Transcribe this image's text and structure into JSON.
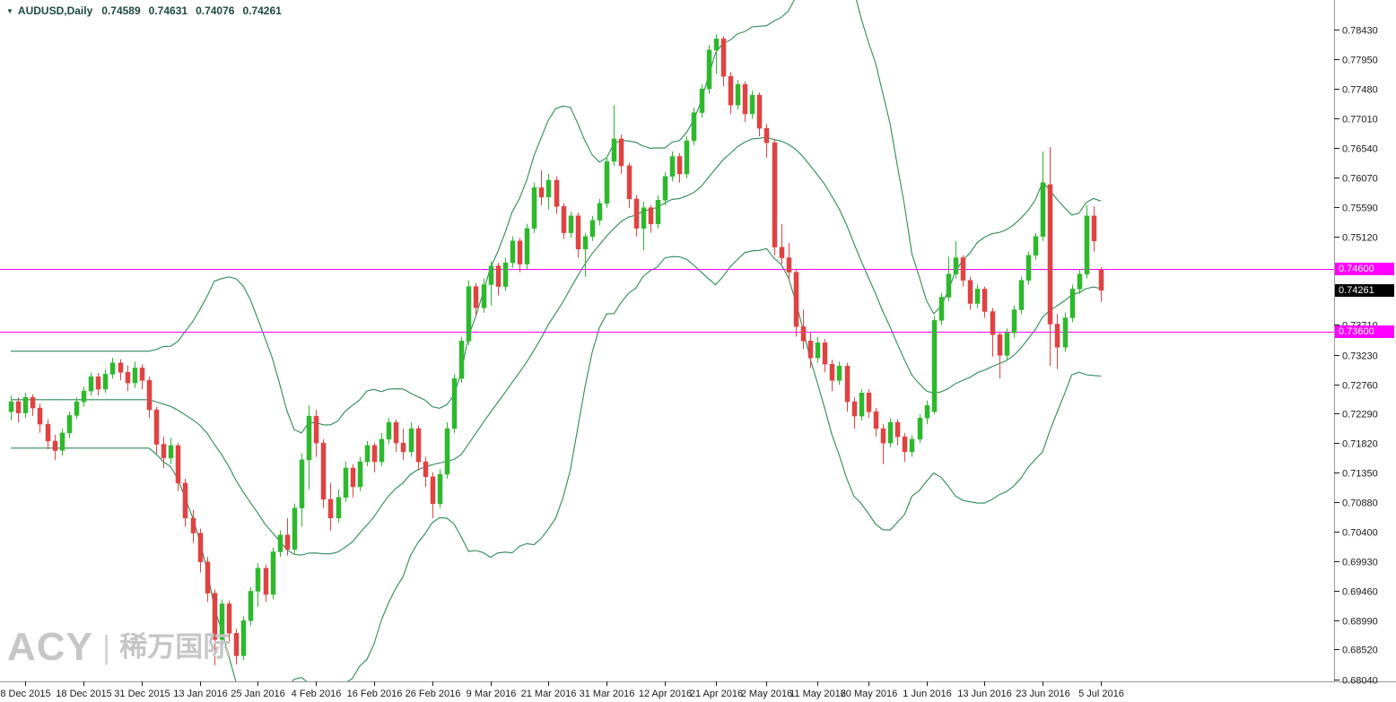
{
  "header": {
    "symbol_timeframe": "AUDUSD,Daily",
    "open": "0.74589",
    "high": "0.74631",
    "low": "0.74076",
    "close": "0.74261"
  },
  "icons": {
    "symbol_dropdown": "▼"
  },
  "watermark": {
    "brand": "ACY",
    "separator": "|",
    "chinese": "稀万国际"
  },
  "colors": {
    "background": "#ffffff",
    "up_candle": "#2eb82e",
    "down_candle": "#e04343",
    "bollinger": "#2e8b57",
    "hline": "#ff00ff",
    "axis_text": "#1a1a1a",
    "scale_border": "#999999",
    "quote_text": "#1c4a40",
    "watermark": "#c6c6c6",
    "price_marker_bg": "#000000",
    "price_marker_fg": "#ffffff"
  },
  "chart_data": {
    "type": "candlestick",
    "symbol": "AUDUSD",
    "timeframe": "Daily",
    "grid": "off",
    "legend": "none",
    "y_axis": {
      "max": 0.789,
      "min": 0.6801,
      "ticks": [
        {
          "p": 0.7843,
          "label": "0.78430"
        },
        {
          "p": 0.7795,
          "label": "0.77950"
        },
        {
          "p": 0.7748,
          "label": "0.77480"
        },
        {
          "p": 0.7701,
          "label": "0.77010"
        },
        {
          "p": 0.7654,
          "label": "0.76540"
        },
        {
          "p": 0.7607,
          "label": "0.76070"
        },
        {
          "p": 0.7559,
          "label": "0.75590"
        },
        {
          "p": 0.7512,
          "label": "0.75120"
        },
        {
          "p": 0.7371,
          "label": "0.73710"
        },
        {
          "p": 0.7323,
          "label": "0.73230"
        },
        {
          "p": 0.7276,
          "label": "0.72760"
        },
        {
          "p": 0.7229,
          "label": "0.72290"
        },
        {
          "p": 0.7182,
          "label": "0.71820"
        },
        {
          "p": 0.7135,
          "label": "0.71350"
        },
        {
          "p": 0.7088,
          "label": "0.70880"
        },
        {
          "p": 0.704,
          "label": "0.70400"
        },
        {
          "p": 0.6993,
          "label": "0.69930"
        },
        {
          "p": 0.6946,
          "label": "0.69460"
        },
        {
          "p": 0.6899,
          "label": "0.68990"
        },
        {
          "p": 0.6852,
          "label": "0.68520"
        },
        {
          "p": 0.6804,
          "label": "0.68040"
        }
      ]
    },
    "x_axis": {
      "ticks": [
        {
          "label": "8 Dec 2015",
          "i": 2
        },
        {
          "label": "18 Dec 2015",
          "i": 10
        },
        {
          "label": "31 Dec 2015",
          "i": 18
        },
        {
          "label": "13 Jan 2016",
          "i": 26
        },
        {
          "label": "25 Jan 2016",
          "i": 34
        },
        {
          "label": "4 Feb 2016",
          "i": 42
        },
        {
          "label": "16 Feb 2016",
          "i": 50
        },
        {
          "label": "26 Feb 2016",
          "i": 58
        },
        {
          "label": "9 Mar 2016",
          "i": 66
        },
        {
          "label": "21 Mar 2016",
          "i": 74
        },
        {
          "label": "31 Mar 2016",
          "i": 82
        },
        {
          "label": "12 Apr 2016",
          "i": 90
        },
        {
          "label": "21 Apr 2016",
          "i": 97
        },
        {
          "label": "2 May 2016",
          "i": 104
        },
        {
          "label": "11 May 2016",
          "i": 111
        },
        {
          "label": "20 May 2016",
          "i": 118
        },
        {
          "label": "1 Jun 2016",
          "i": 126
        },
        {
          "label": "13 Jun 2016",
          "i": 134
        },
        {
          "label": "23 Jun 2016",
          "i": 142
        },
        {
          "label": "5 Jul 2016",
          "i": 150
        }
      ]
    },
    "overlays": {
      "bollinger": {
        "period": 20,
        "deviation": 2
      }
    },
    "h_lines": [
      {
        "price": 0.746,
        "label": "0.74600"
      },
      {
        "price": 0.736,
        "label": "0.73600"
      }
    ],
    "price_marker": {
      "price": 0.74261,
      "label": "0.74261"
    },
    "candles": [
      [
        0.7232,
        0.7258,
        0.7218,
        0.7248
      ],
      [
        0.7248,
        0.7255,
        0.7215,
        0.723
      ],
      [
        0.723,
        0.7262,
        0.7222,
        0.7255
      ],
      [
        0.7255,
        0.726,
        0.7225,
        0.7238
      ],
      [
        0.7238,
        0.7245,
        0.7198,
        0.7212
      ],
      [
        0.7212,
        0.722,
        0.7172,
        0.7185
      ],
      [
        0.7185,
        0.7195,
        0.7155,
        0.717
      ],
      [
        0.717,
        0.7205,
        0.7162,
        0.7198
      ],
      [
        0.7198,
        0.7232,
        0.719,
        0.7226
      ],
      [
        0.7226,
        0.7255,
        0.722,
        0.7248
      ],
      [
        0.7248,
        0.7272,
        0.724,
        0.7265
      ],
      [
        0.7265,
        0.7295,
        0.7258,
        0.7288
      ],
      [
        0.7288,
        0.7294,
        0.7258,
        0.7268
      ],
      [
        0.7268,
        0.73,
        0.7262,
        0.7292
      ],
      [
        0.7292,
        0.7318,
        0.7285,
        0.731
      ],
      [
        0.731,
        0.7316,
        0.7282,
        0.7295
      ],
      [
        0.7295,
        0.7306,
        0.7265,
        0.7278
      ],
      [
        0.7278,
        0.7312,
        0.727,
        0.7302
      ],
      [
        0.7302,
        0.7308,
        0.7268,
        0.7282
      ],
      [
        0.7282,
        0.7288,
        0.7222,
        0.7235
      ],
      [
        0.7235,
        0.724,
        0.7165,
        0.718
      ],
      [
        0.718,
        0.7192,
        0.7142,
        0.7158
      ],
      [
        0.7158,
        0.719,
        0.7148,
        0.7178
      ],
      [
        0.7178,
        0.7182,
        0.7105,
        0.7118
      ],
      [
        0.7118,
        0.7125,
        0.7048,
        0.7062
      ],
      [
        0.7062,
        0.7075,
        0.7022,
        0.7038
      ],
      [
        0.7038,
        0.7045,
        0.6975,
        0.6992
      ],
      [
        0.6992,
        0.7,
        0.6928,
        0.6942
      ],
      [
        0.6942,
        0.6948,
        0.6827,
        0.6868
      ],
      [
        0.6868,
        0.6932,
        0.686,
        0.6925
      ],
      [
        0.6925,
        0.693,
        0.6862,
        0.6878
      ],
      [
        0.6878,
        0.6885,
        0.6828,
        0.6842
      ],
      [
        0.6842,
        0.6905,
        0.6835,
        0.6898
      ],
      [
        0.6898,
        0.6952,
        0.689,
        0.6945
      ],
      [
        0.6945,
        0.699,
        0.692,
        0.6982
      ],
      [
        0.6982,
        0.6988,
        0.6928,
        0.694
      ],
      [
        0.694,
        0.7015,
        0.6932,
        0.7008
      ],
      [
        0.7008,
        0.7042,
        0.7,
        0.7035
      ],
      [
        0.7035,
        0.7062,
        0.7002,
        0.7012
      ],
      [
        0.7012,
        0.7085,
        0.7005,
        0.7078
      ],
      [
        0.7078,
        0.7165,
        0.7048,
        0.7155
      ],
      [
        0.7155,
        0.7242,
        0.7108,
        0.7225
      ],
      [
        0.7225,
        0.7235,
        0.716,
        0.7182
      ],
      [
        0.7182,
        0.7188,
        0.7078,
        0.7092
      ],
      [
        0.7092,
        0.7118,
        0.7042,
        0.7062
      ],
      [
        0.7062,
        0.7108,
        0.7055,
        0.7095
      ],
      [
        0.7095,
        0.7152,
        0.7088,
        0.7142
      ],
      [
        0.7142,
        0.7148,
        0.7095,
        0.7112
      ],
      [
        0.7112,
        0.716,
        0.7105,
        0.7152
      ],
      [
        0.7152,
        0.7185,
        0.7145,
        0.7178
      ],
      [
        0.7178,
        0.7182,
        0.7135,
        0.7152
      ],
      [
        0.7152,
        0.7198,
        0.7145,
        0.7188
      ],
      [
        0.7188,
        0.7222,
        0.718,
        0.7215
      ],
      [
        0.7215,
        0.722,
        0.7168,
        0.7182
      ],
      [
        0.7182,
        0.7205,
        0.7155,
        0.7168
      ],
      [
        0.7168,
        0.7215,
        0.716,
        0.7205
      ],
      [
        0.7205,
        0.721,
        0.7138,
        0.7152
      ],
      [
        0.7152,
        0.716,
        0.7112,
        0.7128
      ],
      [
        0.7128,
        0.7135,
        0.7062,
        0.7085
      ],
      [
        0.7085,
        0.714,
        0.7078,
        0.7132
      ],
      [
        0.7132,
        0.7215,
        0.7125,
        0.7205
      ],
      [
        0.7205,
        0.7292,
        0.7198,
        0.7285
      ],
      [
        0.7285,
        0.7352,
        0.7278,
        0.7345
      ],
      [
        0.7345,
        0.7442,
        0.7338,
        0.7432
      ],
      [
        0.7432,
        0.7438,
        0.7385,
        0.7398
      ],
      [
        0.7398,
        0.7445,
        0.739,
        0.7435
      ],
      [
        0.7435,
        0.7472,
        0.7402,
        0.7465
      ],
      [
        0.7465,
        0.747,
        0.7418,
        0.7432
      ],
      [
        0.7432,
        0.7478,
        0.7425,
        0.747
      ],
      [
        0.747,
        0.7512,
        0.7462,
        0.7505
      ],
      [
        0.7505,
        0.751,
        0.7455,
        0.7468
      ],
      [
        0.7468,
        0.7532,
        0.746,
        0.7525
      ],
      [
        0.7525,
        0.7598,
        0.7518,
        0.759
      ],
      [
        0.759,
        0.7618,
        0.7562,
        0.7575
      ],
      [
        0.7575,
        0.7612,
        0.7555,
        0.7602
      ],
      [
        0.7602,
        0.7608,
        0.7548,
        0.756
      ],
      [
        0.756,
        0.7565,
        0.7508,
        0.7518
      ],
      [
        0.7518,
        0.7552,
        0.751,
        0.7545
      ],
      [
        0.7545,
        0.755,
        0.7478,
        0.7492
      ],
      [
        0.7492,
        0.7518,
        0.7448,
        0.7512
      ],
      [
        0.7512,
        0.7545,
        0.7505,
        0.7538
      ],
      [
        0.7538,
        0.7572,
        0.753,
        0.7565
      ],
      [
        0.7565,
        0.764,
        0.7558,
        0.7632
      ],
      [
        0.7632,
        0.7722,
        0.7625,
        0.7668
      ],
      [
        0.7668,
        0.7675,
        0.7612,
        0.7625
      ],
      [
        0.7625,
        0.763,
        0.7558,
        0.7572
      ],
      [
        0.7572,
        0.7578,
        0.7512,
        0.7525
      ],
      [
        0.7525,
        0.7568,
        0.749,
        0.7558
      ],
      [
        0.7558,
        0.7562,
        0.7518,
        0.7532
      ],
      [
        0.7532,
        0.7578,
        0.7525,
        0.757
      ],
      [
        0.757,
        0.7615,
        0.7562,
        0.7608
      ],
      [
        0.7608,
        0.7648,
        0.76,
        0.764
      ],
      [
        0.764,
        0.7645,
        0.7598,
        0.7612
      ],
      [
        0.7612,
        0.7672,
        0.7605,
        0.7665
      ],
      [
        0.7665,
        0.7718,
        0.7658,
        0.771
      ],
      [
        0.771,
        0.7755,
        0.7702,
        0.7748
      ],
      [
        0.7748,
        0.7818,
        0.774,
        0.781
      ],
      [
        0.781,
        0.7835,
        0.7772,
        0.7828
      ],
      [
        0.7828,
        0.7832,
        0.7752,
        0.7768
      ],
      [
        0.7768,
        0.7775,
        0.7708,
        0.7722
      ],
      [
        0.7722,
        0.7762,
        0.7715,
        0.7755
      ],
      [
        0.7755,
        0.776,
        0.7695,
        0.7708
      ],
      [
        0.7708,
        0.7745,
        0.77,
        0.7738
      ],
      [
        0.7738,
        0.7742,
        0.7672,
        0.7685
      ],
      [
        0.7685,
        0.7692,
        0.7638,
        0.7662
      ],
      [
        0.7662,
        0.7668,
        0.7482,
        0.7495
      ],
      [
        0.7495,
        0.7532,
        0.7468,
        0.7478
      ],
      [
        0.7478,
        0.7502,
        0.7442,
        0.7455
      ],
      [
        0.7455,
        0.746,
        0.7352,
        0.7368
      ],
      [
        0.7368,
        0.7395,
        0.7332,
        0.7345
      ],
      [
        0.7345,
        0.7358,
        0.7302,
        0.7318
      ],
      [
        0.7318,
        0.7352,
        0.731,
        0.7342
      ],
      [
        0.7342,
        0.7348,
        0.7295,
        0.7308
      ],
      [
        0.7308,
        0.7315,
        0.7265,
        0.7282
      ],
      [
        0.7282,
        0.7312,
        0.7275,
        0.7305
      ],
      [
        0.7305,
        0.731,
        0.7232,
        0.7248
      ],
      [
        0.7248,
        0.7255,
        0.7205,
        0.7225
      ],
      [
        0.7225,
        0.7268,
        0.7218,
        0.7262
      ],
      [
        0.7262,
        0.7268,
        0.7222,
        0.7232
      ],
      [
        0.7232,
        0.7238,
        0.7192,
        0.7205
      ],
      [
        0.7205,
        0.7212,
        0.7148,
        0.7182
      ],
      [
        0.7182,
        0.7222,
        0.7175,
        0.7215
      ],
      [
        0.7215,
        0.722,
        0.7178,
        0.7192
      ],
      [
        0.7192,
        0.7198,
        0.7152,
        0.7168
      ],
      [
        0.7168,
        0.7195,
        0.716,
        0.7188
      ],
      [
        0.7188,
        0.7228,
        0.7182,
        0.7222
      ],
      [
        0.7222,
        0.725,
        0.7212,
        0.7242
      ],
      [
        0.7232,
        0.7385,
        0.7228,
        0.7378
      ],
      [
        0.7378,
        0.7422,
        0.737,
        0.7415
      ],
      [
        0.7415,
        0.748,
        0.7408,
        0.7452
      ],
      [
        0.7452,
        0.7505,
        0.7445,
        0.7478
      ],
      [
        0.7478,
        0.7482,
        0.7432,
        0.7442
      ],
      [
        0.7442,
        0.7448,
        0.7395,
        0.7405
      ],
      [
        0.7405,
        0.7435,
        0.7398,
        0.7428
      ],
      [
        0.7428,
        0.7432,
        0.7382,
        0.7392
      ],
      [
        0.7392,
        0.7398,
        0.732,
        0.7355
      ],
      [
        0.7355,
        0.736,
        0.7285,
        0.7322
      ],
      [
        0.7322,
        0.7365,
        0.7315,
        0.7358
      ],
      [
        0.7358,
        0.7402,
        0.735,
        0.7395
      ],
      [
        0.7395,
        0.7448,
        0.7388,
        0.7442
      ],
      [
        0.7442,
        0.7488,
        0.7435,
        0.7482
      ],
      [
        0.7482,
        0.7518,
        0.7475,
        0.7512
      ],
      [
        0.7512,
        0.7648,
        0.7505,
        0.7598
      ],
      [
        0.7595,
        0.7655,
        0.7305,
        0.7372
      ],
      [
        0.7372,
        0.7388,
        0.73,
        0.7335
      ],
      [
        0.7335,
        0.739,
        0.7328,
        0.7382
      ],
      [
        0.7382,
        0.7435,
        0.7375,
        0.7428
      ],
      [
        0.7428,
        0.746,
        0.742,
        0.7452
      ],
      [
        0.7452,
        0.7562,
        0.7445,
        0.7545
      ],
      [
        0.7545,
        0.756,
        0.7488,
        0.7505
      ],
      [
        0.74589,
        0.74631,
        0.74076,
        0.74261
      ]
    ]
  }
}
